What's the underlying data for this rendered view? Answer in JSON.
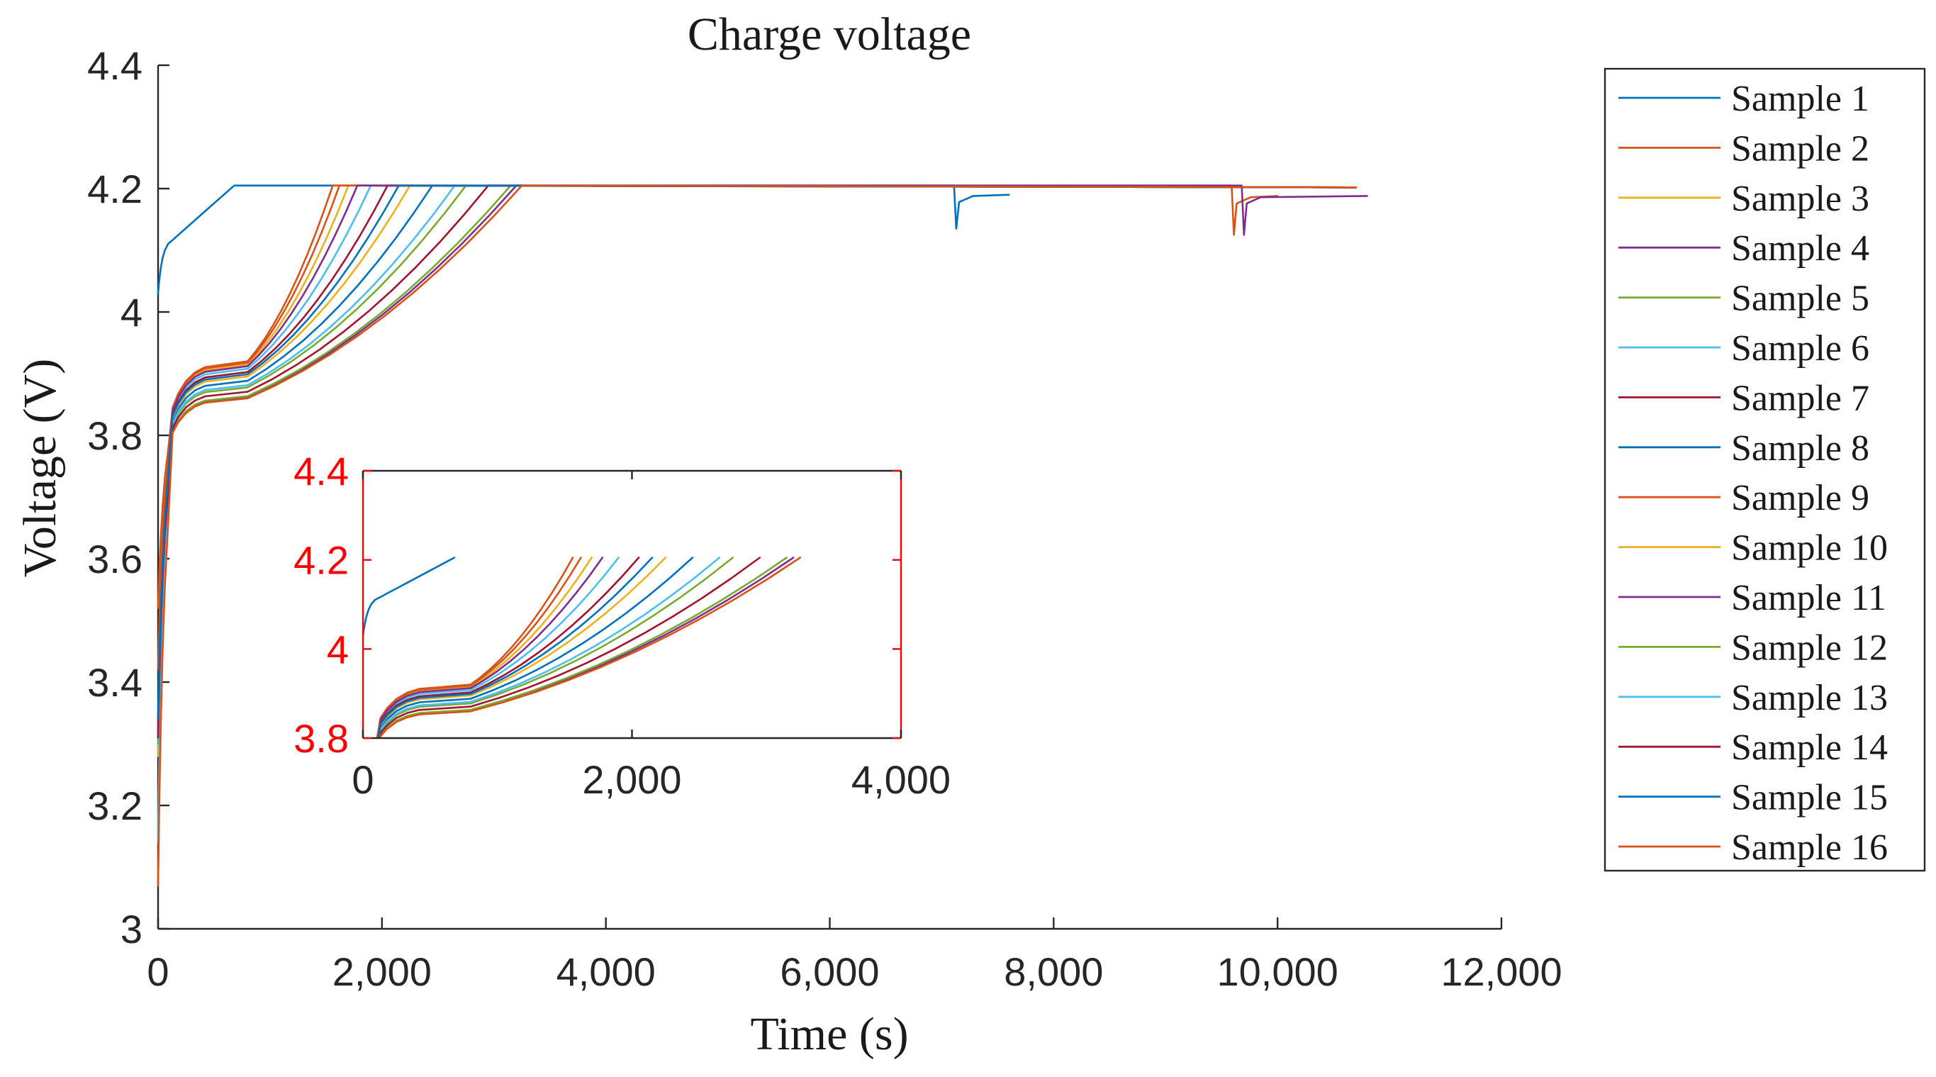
{
  "chart_data": {
    "type": "line",
    "title": "Charge voltage",
    "xlabel": "Time (s)",
    "ylabel": "Voltage (V)",
    "xlim": [
      0,
      12000
    ],
    "ylim": [
      3,
      4.4
    ],
    "xticks": [
      0,
      2000,
      4000,
      6000,
      8000,
      10000,
      12000
    ],
    "xtick_labels": [
      "0",
      "2,000",
      "4,000",
      "6,000",
      "8,000",
      "10,000",
      "12,000"
    ],
    "yticks": [
      3,
      3.2,
      3.4,
      3.6,
      3.8,
      4,
      4.2,
      4.4
    ],
    "ytick_labels": [
      "3",
      "3.2",
      "3.4",
      "3.6",
      "3.8",
      "4",
      "4.2",
      "4.4"
    ],
    "legend_position": "outside-right",
    "series": [
      {
        "name": "Sample 1",
        "color": "#0072BD",
        "cv_start": 680,
        "end": 7600,
        "v0": 4.03,
        "plateau": 4.205,
        "dip_time": 7130,
        "dip_value": 4.135,
        "rest_value": 4.19
      },
      {
        "name": "Sample 2",
        "color": "#D95319",
        "cv_start": 1560,
        "end": 10000,
        "v0": 3.42,
        "plateau": 4.205,
        "dip_time": 9610,
        "dip_value": 4.125,
        "rest_value": 4.188
      },
      {
        "name": "Sample 3",
        "color": "#EDB120",
        "cv_start": 1700,
        "end": 10700,
        "v0": 3.28,
        "plateau": 4.205,
        "dip_time": null,
        "dip_value": null,
        "rest_value": null
      },
      {
        "name": "Sample 4",
        "color": "#7E2F8E",
        "cv_start": 3200,
        "end": 10800,
        "v0": 3.34,
        "plateau": 4.205,
        "dip_time": 9700,
        "dip_value": 4.125,
        "rest_value": 4.188
      },
      {
        "name": "Sample 5",
        "color": "#77AC30",
        "cv_start": 3150,
        "end": 10700,
        "v0": 3.3,
        "plateau": 4.205,
        "dip_time": null,
        "dip_value": null,
        "rest_value": null
      },
      {
        "name": "Sample 6",
        "color": "#4DBEEE",
        "cv_start": 1900,
        "end": 10700,
        "v0": 3.14,
        "plateau": 4.205,
        "dip_time": null,
        "dip_value": null,
        "rest_value": null
      },
      {
        "name": "Sample 7",
        "color": "#A2142F",
        "cv_start": 2050,
        "end": 10700,
        "v0": 3.31,
        "plateau": 4.205,
        "dip_time": null,
        "dip_value": null,
        "rest_value": null
      },
      {
        "name": "Sample 8",
        "color": "#0072BD",
        "cv_start": 2450,
        "end": 10700,
        "v0": 3.33,
        "plateau": 4.205,
        "dip_time": null,
        "dip_value": null,
        "rest_value": null
      },
      {
        "name": "Sample 9",
        "color": "#D95319",
        "cv_start": 1620,
        "end": 10700,
        "v0": 3.52,
        "plateau": 4.205,
        "dip_time": null,
        "dip_value": null,
        "rest_value": null
      },
      {
        "name": "Sample 10",
        "color": "#EDB120",
        "cv_start": 2250,
        "end": 10700,
        "v0": 3.29,
        "plateau": 4.205,
        "dip_time": null,
        "dip_value": null,
        "rest_value": null
      },
      {
        "name": "Sample 11",
        "color": "#7E2F8E",
        "cv_start": 1780,
        "end": 10700,
        "v0": 3.32,
        "plateau": 4.205,
        "dip_time": null,
        "dip_value": null,
        "rest_value": null
      },
      {
        "name": "Sample 12",
        "color": "#77AC30",
        "cv_start": 2750,
        "end": 10700,
        "v0": 3.3,
        "plateau": 4.205,
        "dip_time": null,
        "dip_value": null,
        "rest_value": null
      },
      {
        "name": "Sample 13",
        "color": "#4DBEEE",
        "cv_start": 2650,
        "end": 10700,
        "v0": 3.15,
        "plateau": 4.205,
        "dip_time": null,
        "dip_value": null,
        "rest_value": null
      },
      {
        "name": "Sample 14",
        "color": "#A2142F",
        "cv_start": 2950,
        "end": 10700,
        "v0": 3.31,
        "plateau": 4.205,
        "dip_time": null,
        "dip_value": null,
        "rest_value": null
      },
      {
        "name": "Sample 15",
        "color": "#0072BD",
        "cv_start": 2150,
        "end": 10700,
        "v0": 3.34,
        "plateau": 4.205,
        "dip_time": null,
        "dip_value": null,
        "rest_value": null
      },
      {
        "name": "Sample 16",
        "color": "#D95319",
        "cv_start": 3250,
        "end": 10700,
        "v0": 3.07,
        "plateau": 4.205,
        "dip_time": null,
        "dip_value": null,
        "rest_value": null
      }
    ],
    "inset": {
      "xlim": [
        0,
        4000
      ],
      "ylim": [
        3.8,
        4.4
      ],
      "xticks": [
        0,
        2000,
        4000
      ],
      "xtick_labels": [
        "0",
        "2,000",
        "4,000"
      ],
      "yticks": [
        3.8,
        4,
        4.2,
        4.4
      ],
      "ytick_labels": [
        "3.8",
        "4",
        "4.2",
        "4.4"
      ],
      "axis_color": "#ff0000"
    }
  }
}
